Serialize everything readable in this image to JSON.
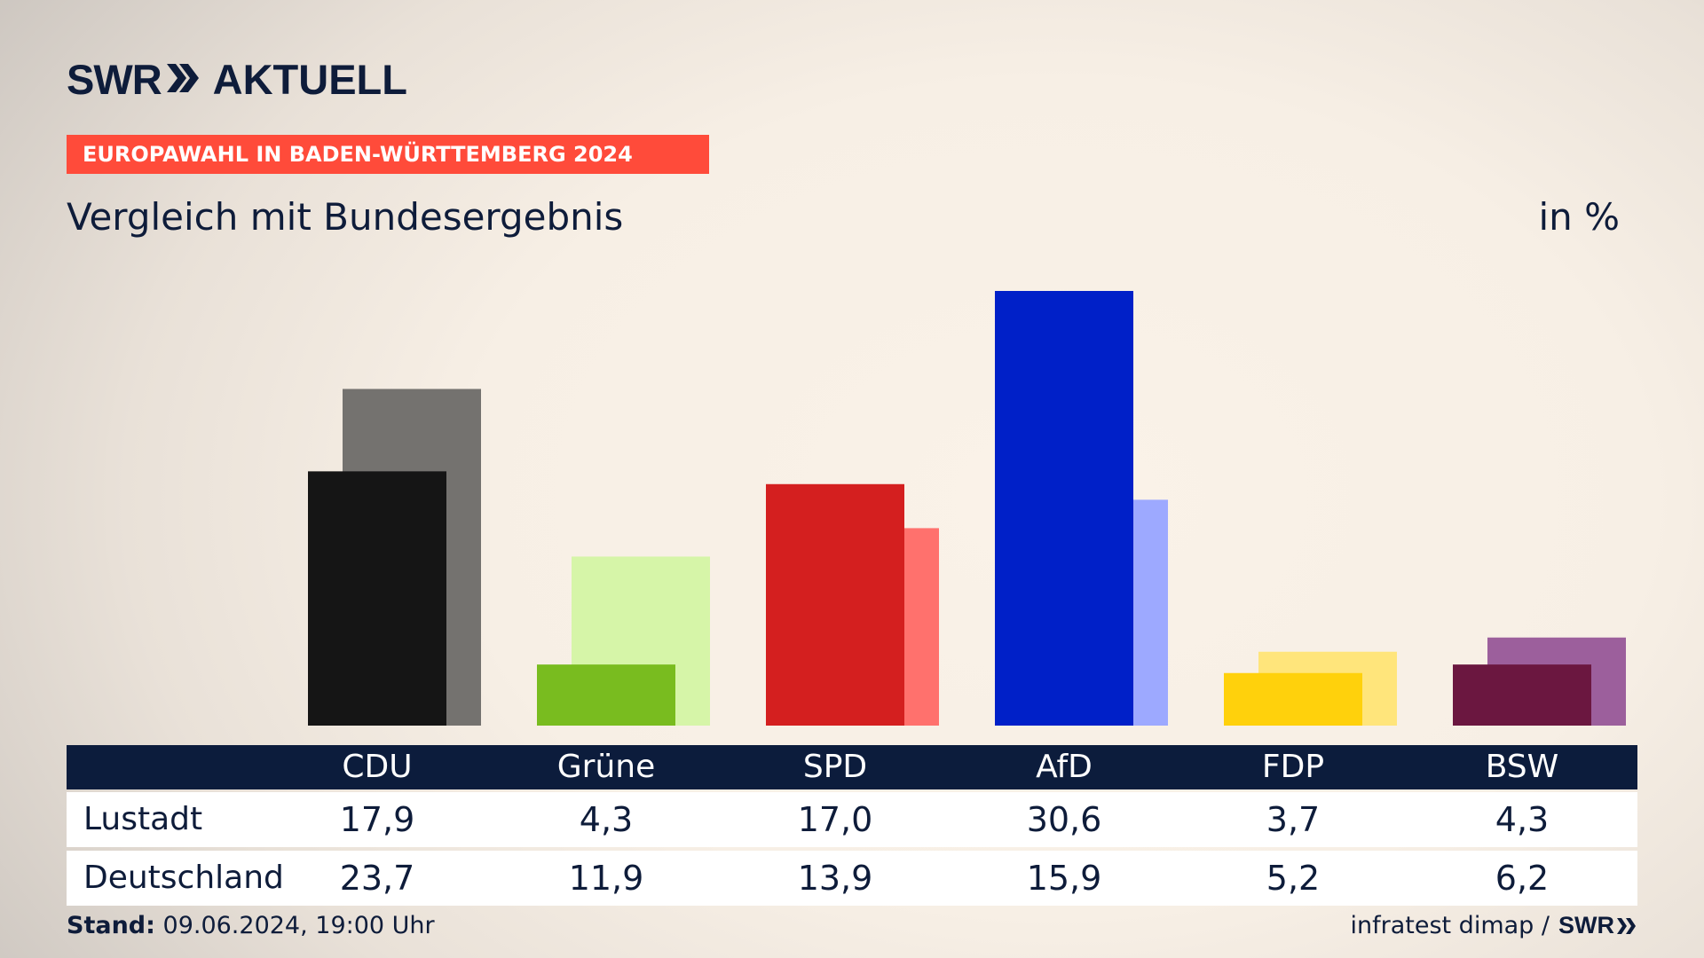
{
  "brand": {
    "swr": "SWR",
    "aktuell": "AKTUELL"
  },
  "tag_label": "EUROPAWAHL IN BADEN-WÜRTTEMBERG 2024",
  "headline": "Vergleich mit Bundesergebnis",
  "unit": "in %",
  "colors": {
    "CDU": [
      "#151515",
      "#74726f"
    ],
    "Grüne": [
      "#79bc1f",
      "#d6f5a8"
    ],
    "SPD": [
      "#d41f1f",
      "#ff716d"
    ],
    "AfD": [
      "#0020c8",
      "#9da9ff"
    ],
    "FDP": [
      "#ffd10c",
      "#ffe57b"
    ],
    "BSW": [
      "#6b1740",
      "#9c5f9c"
    ],
    "header_bg": "#0c1c3c",
    "tag_bg": "#ff4b3a"
  },
  "chart_data": {
    "type": "bar",
    "categories": [
      "CDU",
      "Grüne",
      "SPD",
      "AfD",
      "FDP",
      "BSW"
    ],
    "series": [
      {
        "name": "Lustadt",
        "values": [
          17.9,
          4.3,
          17.0,
          30.6,
          3.7,
          4.3
        ]
      },
      {
        "name": "Deutschland",
        "values": [
          23.7,
          11.9,
          13.9,
          15.9,
          5.2,
          6.2
        ]
      }
    ],
    "ylim": [
      0,
      30.6
    ],
    "grid": false
  },
  "table": {
    "rows": [
      {
        "label": "Lustadt",
        "values": [
          "17,9",
          "4,3",
          "17,0",
          "30,6",
          "3,7",
          "4,3"
        ]
      },
      {
        "label": "Deutschland",
        "values": [
          "23,7",
          "11,9",
          "13,9",
          "15,9",
          "5,2",
          "6,2"
        ]
      }
    ]
  },
  "footer": {
    "stand_label": "Stand:",
    "stand_value": "09.06.2024, 19:00 Uhr",
    "source": "infratest dimap /",
    "swr": "SWR"
  }
}
